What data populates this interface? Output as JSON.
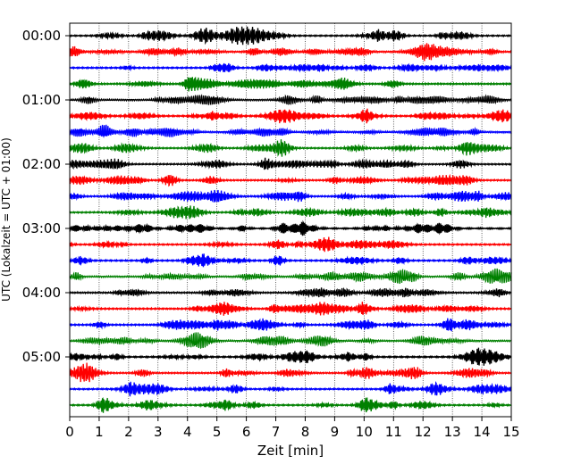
{
  "chart_data": {
    "type": "line",
    "title": "",
    "xlabel": "Zeit  [min]",
    "ylabel": "UTC (Lokalzeit = UTC + 01:00)",
    "xlim": [
      0,
      15
    ],
    "x_ticks": [
      "0",
      "1",
      "2",
      "3",
      "4",
      "5",
      "6",
      "7",
      "8",
      "9",
      "10",
      "11",
      "12",
      "13",
      "14",
      "15"
    ],
    "y_tick_labels": [
      "00:00",
      "01:00",
      "02:00",
      "03:00",
      "04:00",
      "05:00"
    ],
    "trace_count": 24,
    "minutes_per_trace": 15,
    "grid": "vertical dotted at each minute",
    "series_colors": [
      "#000000",
      "#ff0000",
      "#0000ff",
      "#008000"
    ]
  }
}
